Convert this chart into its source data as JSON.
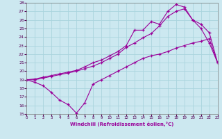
{
  "xlabel": "Windchill (Refroidissement éolien,°C)",
  "xlim": [
    0,
    23
  ],
  "ylim": [
    15,
    28
  ],
  "xticks": [
    0,
    1,
    2,
    3,
    4,
    5,
    6,
    7,
    8,
    9,
    10,
    11,
    12,
    13,
    14,
    15,
    16,
    17,
    18,
    19,
    20,
    21,
    22,
    23
  ],
  "yticks": [
    15,
    16,
    17,
    18,
    19,
    20,
    21,
    22,
    23,
    24,
    25,
    26,
    27,
    28
  ],
  "bg_color": "#cce8f0",
  "line_color": "#990099",
  "grid_color": "#aad4de",
  "line1_x": [
    0,
    1,
    2,
    3,
    4,
    5,
    6,
    7,
    8,
    9,
    10,
    11,
    12,
    13,
    14,
    15,
    16,
    17,
    18,
    19,
    20,
    21,
    22,
    23
  ],
  "line1_y": [
    19.0,
    18.7,
    18.3,
    17.5,
    16.6,
    16.1,
    15.1,
    16.3,
    18.5,
    19.0,
    19.5,
    20.0,
    20.5,
    21.0,
    21.5,
    21.8,
    22.0,
    22.3,
    22.7,
    23.0,
    23.3,
    23.5,
    23.8,
    21.0
  ],
  "line2_x": [
    0,
    1,
    2,
    3,
    4,
    5,
    6,
    7,
    8,
    9,
    10,
    11,
    12,
    13,
    14,
    15,
    16,
    17,
    18,
    19,
    20,
    21,
    22,
    23
  ],
  "line2_y": [
    19.0,
    19.1,
    19.3,
    19.5,
    19.7,
    19.9,
    20.1,
    20.5,
    21.0,
    21.3,
    21.8,
    22.3,
    23.0,
    24.8,
    24.8,
    25.8,
    25.5,
    27.0,
    27.8,
    27.5,
    26.0,
    25.0,
    23.3,
    21.0
  ],
  "line3_x": [
    0,
    1,
    2,
    3,
    4,
    5,
    6,
    7,
    8,
    9,
    10,
    11,
    12,
    13,
    14,
    15,
    16,
    17,
    18,
    19,
    20,
    21,
    22,
    23
  ],
  "line3_y": [
    19.0,
    19.0,
    19.2,
    19.4,
    19.6,
    19.8,
    20.0,
    20.3,
    20.6,
    21.0,
    21.5,
    22.0,
    22.8,
    23.3,
    23.9,
    24.4,
    25.3,
    26.4,
    27.0,
    27.3,
    26.0,
    25.5,
    24.5,
    21.0
  ]
}
